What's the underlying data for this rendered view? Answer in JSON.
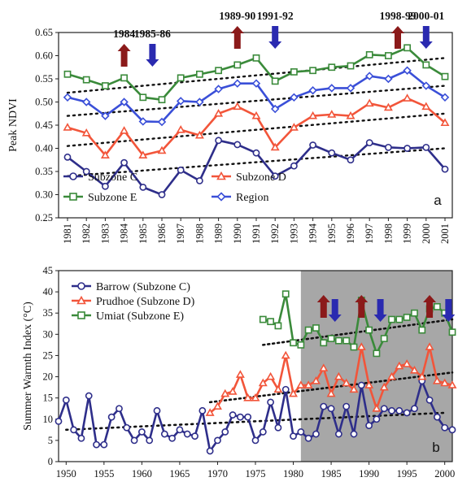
{
  "chart_data": [
    {
      "type": "line",
      "panel_label": "a",
      "ylabel": "Peak NDVI",
      "ylim": [
        0.25,
        0.65
      ],
      "yticks": [
        "0.25",
        "0.30",
        "0.35",
        "0.40",
        "0.45",
        "0.50",
        "0.55",
        "0.60",
        "0.65"
      ],
      "x": [
        1981,
        1982,
        1983,
        1984,
        1985,
        1986,
        1987,
        1988,
        1989,
        1990,
        1991,
        1992,
        1993,
        1994,
        1995,
        1996,
        1997,
        1998,
        1999,
        2000,
        2001
      ],
      "xticks": [
        "1981",
        "1982",
        "1983",
        "1984",
        "1985",
        "1986",
        "1987",
        "1988",
        "1989",
        "1990",
        "1991",
        "1992",
        "1993",
        "1994",
        "1995",
        "1996",
        "1997",
        "1998",
        "1999",
        "2000",
        "2001"
      ],
      "series": [
        {
          "name": "Subzone C",
          "color": "#2e2e8a",
          "marker": "circle",
          "values": [
            0.381,
            0.35,
            0.318,
            0.369,
            0.316,
            0.3,
            0.353,
            0.33,
            0.417,
            0.408,
            0.39,
            0.34,
            0.362,
            0.407,
            0.39,
            0.375,
            0.412,
            0.402,
            0.4,
            0.402,
            0.355
          ],
          "trend": [
            0.34,
            0.4
          ]
        },
        {
          "name": "Subzone D",
          "color": "#f2553a",
          "marker": "triangle",
          "values": [
            0.445,
            0.433,
            0.385,
            0.438,
            0.385,
            0.395,
            0.44,
            0.428,
            0.475,
            0.49,
            0.47,
            0.402,
            0.445,
            0.47,
            0.473,
            0.47,
            0.497,
            0.488,
            0.508,
            0.49,
            0.455
          ],
          "trend": [
            0.405,
            0.475
          ]
        },
        {
          "name": "Subzone E",
          "color": "#3a8a3a",
          "marker": "square",
          "values": [
            0.56,
            0.548,
            0.535,
            0.552,
            0.51,
            0.505,
            0.552,
            0.56,
            0.568,
            0.58,
            0.595,
            0.545,
            0.565,
            0.568,
            0.575,
            0.578,
            0.602,
            0.6,
            0.617,
            0.58,
            0.555
          ],
          "trend": [
            0.52,
            0.595
          ]
        },
        {
          "name": "Region",
          "color": "#3a4fd8",
          "marker": "diamond",
          "values": [
            0.51,
            0.5,
            0.47,
            0.5,
            0.458,
            0.457,
            0.502,
            0.5,
            0.528,
            0.54,
            0.54,
            0.485,
            0.51,
            0.525,
            0.53,
            0.53,
            0.556,
            0.55,
            0.568,
            0.535,
            0.51
          ],
          "trend": [
            0.47,
            0.535
          ]
        }
      ],
      "annotations": [
        {
          "label": "1984",
          "x": 1984,
          "arrow": "up",
          "color": "#8b1a1a"
        },
        {
          "label": "1985-86",
          "x": 1985.5,
          "arrow": "down",
          "color": "#2a2ab0"
        },
        {
          "label": "1989-90",
          "x": 1990,
          "arrow": "up",
          "color": "#8b1a1a"
        },
        {
          "label": "1991-92",
          "x": 1992,
          "arrow": "down",
          "color": "#2a2ab0"
        },
        {
          "label": "1998-99",
          "x": 1998.5,
          "arrow": "up",
          "color": "#8b1a1a"
        },
        {
          "label": "2000-01",
          "x": 2000,
          "arrow": "down",
          "color": "#2a2ab0"
        }
      ],
      "legend": {
        "placement": "bottom",
        "columns": 2
      }
    },
    {
      "type": "line",
      "panel_label": "b",
      "ylabel": "Summer Warmth Index (°C)",
      "ylim": [
        0,
        45
      ],
      "yticks": [
        "0",
        "5",
        "10",
        "15",
        "20",
        "25",
        "30",
        "35",
        "40",
        "45"
      ],
      "xlim": [
        1949,
        2001
      ],
      "xticks": [
        "1950",
        "1955",
        "1960",
        "1965",
        "1970",
        "1975",
        "1980",
        "1985",
        "1990",
        "1995",
        "2000"
      ],
      "shaded_range": [
        1981,
        2001
      ],
      "series": [
        {
          "name": "Barrow (Subzone C)",
          "color": "#2e2e8a",
          "marker": "circle",
          "x": [
            1949,
            1950,
            1951,
            1952,
            1953,
            1954,
            1955,
            1956,
            1957,
            1958,
            1959,
            1960,
            1961,
            1962,
            1963,
            1964,
            1965,
            1966,
            1967,
            1968,
            1969,
            1970,
            1971,
            1972,
            1973,
            1974,
            1975,
            1976,
            1977,
            1978,
            1979,
            1980,
            1981,
            1982,
            1983,
            1984,
            1985,
            1986,
            1987,
            1988,
            1989,
            1990,
            1991,
            1992,
            1993,
            1994,
            1995,
            1996,
            1997,
            1998,
            1999,
            2000,
            2001
          ],
          "values": [
            9.5,
            14.5,
            7.5,
            5.5,
            15.5,
            4,
            4,
            10.5,
            12.5,
            8,
            5,
            7,
            5,
            12,
            6.5,
            5.5,
            7.5,
            6.5,
            6,
            12,
            2.5,
            5,
            7,
            11,
            10.5,
            10.5,
            5,
            7,
            14,
            8,
            17,
            6,
            7,
            5.5,
            6.5,
            13,
            12.5,
            6.5,
            13,
            6.5,
            18,
            8.5,
            10,
            12.5,
            12,
            12,
            11.5,
            12.5,
            19,
            14.5,
            10.5,
            8,
            7.5
          ],
          "trend": [
            [
              1950,
              7.5
            ],
            [
              2000,
              11.5
            ]
          ]
        },
        {
          "name": "Prudhoe (Subzone D)",
          "color": "#f2553a",
          "marker": "triangle",
          "x": [
            1969,
            1970,
            1971,
            1972,
            1973,
            1974,
            1975,
            1976,
            1977,
            1978,
            1979,
            1980,
            1981,
            1982,
            1983,
            1984,
            1985,
            1986,
            1987,
            1988,
            1989,
            1990,
            1991,
            1992,
            1993,
            1994,
            1995,
            1996,
            1997,
            1998,
            1999,
            2000,
            2001
          ],
          "values": [
            11.5,
            13,
            16,
            16.5,
            20.5,
            15,
            15,
            18.5,
            20,
            17,
            25,
            16,
            18,
            18,
            19,
            22,
            16,
            20,
            18.5,
            17,
            27,
            18,
            12.5,
            17.5,
            20,
            22.5,
            23,
            21.5,
            20,
            27,
            19,
            18.5,
            18
          ],
          "trend": [
            [
              1969,
              14
            ],
            [
              2001,
              21
            ]
          ]
        },
        {
          "name": "Umiat (Subzone E)",
          "color": "#3a8a3a",
          "marker": "square",
          "x": [
            1976,
            1977,
            1978,
            1979,
            1980,
            1981,
            1982,
            1983,
            1984,
            1985,
            1986,
            1987,
            1988,
            1989,
            1990,
            1991,
            1992,
            1993,
            1994,
            1995,
            1996,
            1997,
            1998,
            1999,
            2000,
            2001
          ],
          "values": [
            33.5,
            33,
            32,
            39.5,
            28,
            27.5,
            31,
            31.5,
            28,
            29,
            28.5,
            28.5,
            27,
            38,
            31,
            25.5,
            29,
            33.5,
            33.5,
            34,
            35,
            31,
            36,
            36.5,
            35,
            30.5
          ],
          "trend": [
            [
              1976,
              27.5
            ],
            [
              2001,
              33.5
            ]
          ]
        }
      ],
      "annotations": [
        {
          "x": 1984,
          "arrow": "up",
          "color": "#8b1a1a"
        },
        {
          "x": 1985.5,
          "arrow": "down",
          "color": "#2a2ab0"
        },
        {
          "x": 1989,
          "arrow": "up",
          "color": "#8b1a1a"
        },
        {
          "x": 1991.5,
          "arrow": "down",
          "color": "#2a2ab0"
        },
        {
          "x": 1998,
          "arrow": "up",
          "color": "#8b1a1a"
        },
        {
          "x": 2000.5,
          "arrow": "down",
          "color": "#2a2ab0"
        }
      ],
      "legend": {
        "placement": "top-left",
        "columns": 1
      }
    }
  ]
}
